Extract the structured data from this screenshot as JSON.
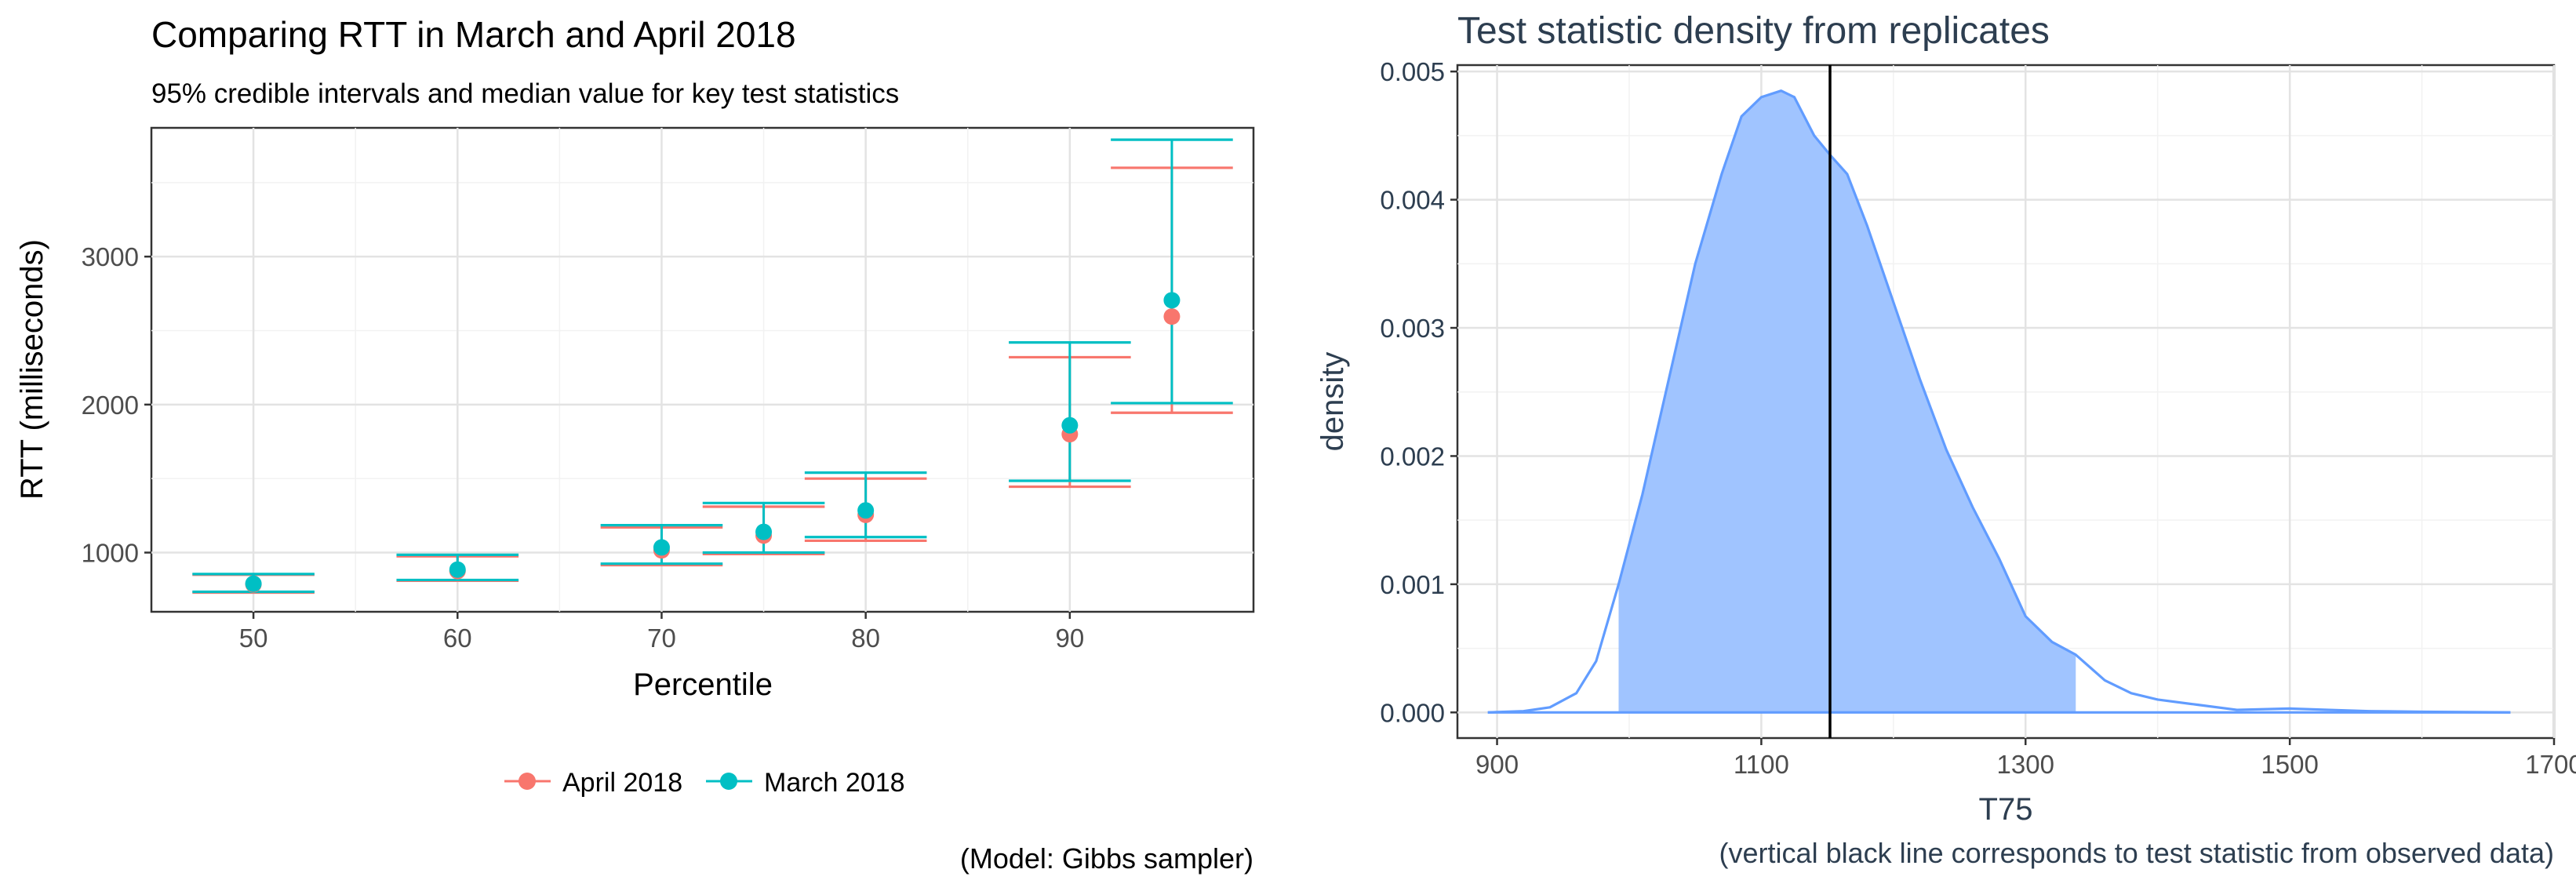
{
  "chart_data": [
    {
      "type": "errorbar",
      "title": "Comparing RTT in March and April 2018",
      "subtitle": "95% credible intervals and median value for key test statistics",
      "caption": "(Model: Gibbs sampler)",
      "xlabel": "Percentile",
      "ylabel": "RTT (milliseconds)",
      "xlim": [
        45,
        99
      ],
      "ylim": [
        600,
        3870
      ],
      "x_ticks": [
        50,
        60,
        70,
        80,
        90
      ],
      "y_ticks": [
        1000,
        2000,
        3000
      ],
      "grid": true,
      "legend_position": "bottom",
      "series": [
        {
          "name": "April 2018",
          "color": "#F8766D",
          "points": [
            {
              "x": 50,
              "median": 785,
              "low": 730,
              "high": 850
            },
            {
              "x": 60,
              "median": 875,
              "low": 810,
              "high": 975
            },
            {
              "x": 70,
              "median": 1015,
              "low": 915,
              "high": 1170
            },
            {
              "x": 75,
              "median": 1115,
              "low": 990,
              "high": 1310
            },
            {
              "x": 80,
              "median": 1255,
              "low": 1080,
              "high": 1500
            },
            {
              "x": 90,
              "median": 1800,
              "low": 1445,
              "high": 2320
            },
            {
              "x": 95,
              "median": 2595,
              "low": 1945,
              "high": 3600
            }
          ]
        },
        {
          "name": "March 2018",
          "color": "#00BFC4",
          "points": [
            {
              "x": 50,
              "median": 790,
              "low": 735,
              "high": 855
            },
            {
              "x": 60,
              "median": 885,
              "low": 815,
              "high": 985
            },
            {
              "x": 70,
              "median": 1035,
              "low": 925,
              "high": 1185
            },
            {
              "x": 75,
              "median": 1140,
              "low": 1000,
              "high": 1335
            },
            {
              "x": 80,
              "median": 1285,
              "low": 1105,
              "high": 1540
            },
            {
              "x": 90,
              "median": 1860,
              "low": 1485,
              "high": 2420
            },
            {
              "x": 95,
              "median": 2705,
              "low": 2010,
              "high": 3790
            }
          ]
        }
      ]
    },
    {
      "type": "area",
      "title": "Test statistic density from replicates",
      "xlabel": "T75",
      "ylabel": "density",
      "caption": "(vertical black line corresponds to test statistic from observed data)",
      "xlim": [
        870,
        1700
      ],
      "ylim": [
        -0.0002,
        0.00505
      ],
      "x_ticks": [
        900,
        1100,
        1300,
        1500,
        1700
      ],
      "y_ticks": [
        0.0,
        0.001,
        0.002,
        0.003,
        0.004,
        0.005
      ],
      "y_tick_labels": [
        "0.000",
        "0.001",
        "0.002",
        "0.003",
        "0.004",
        "0.005"
      ],
      "grid": true,
      "observed_value": 1152,
      "shaded_interval": [
        992,
        1338
      ],
      "line_color": "#619CFF",
      "fill_color": "#A0C4FF",
      "density": [
        {
          "x": 893,
          "y": 0.0
        },
        {
          "x": 920,
          "y": 1e-05
        },
        {
          "x": 940,
          "y": 4e-05
        },
        {
          "x": 960,
          "y": 0.00015
        },
        {
          "x": 975,
          "y": 0.0004
        },
        {
          "x": 992,
          "y": 0.001
        },
        {
          "x": 1010,
          "y": 0.0017
        },
        {
          "x": 1030,
          "y": 0.0026
        },
        {
          "x": 1050,
          "y": 0.0035
        },
        {
          "x": 1070,
          "y": 0.0042
        },
        {
          "x": 1085,
          "y": 0.00465
        },
        {
          "x": 1100,
          "y": 0.0048
        },
        {
          "x": 1115,
          "y": 0.00485
        },
        {
          "x": 1125,
          "y": 0.0048
        },
        {
          "x": 1140,
          "y": 0.0045
        },
        {
          "x": 1152,
          "y": 0.00435
        },
        {
          "x": 1165,
          "y": 0.0042
        },
        {
          "x": 1180,
          "y": 0.0038
        },
        {
          "x": 1200,
          "y": 0.0032
        },
        {
          "x": 1220,
          "y": 0.0026
        },
        {
          "x": 1240,
          "y": 0.00205
        },
        {
          "x": 1260,
          "y": 0.0016
        },
        {
          "x": 1280,
          "y": 0.0012
        },
        {
          "x": 1300,
          "y": 0.00075
        },
        {
          "x": 1320,
          "y": 0.00055
        },
        {
          "x": 1338,
          "y": 0.00045
        },
        {
          "x": 1360,
          "y": 0.00025
        },
        {
          "x": 1380,
          "y": 0.00015
        },
        {
          "x": 1400,
          "y": 0.0001
        },
        {
          "x": 1430,
          "y": 6e-05
        },
        {
          "x": 1460,
          "y": 2e-05
        },
        {
          "x": 1500,
          "y": 3e-05
        },
        {
          "x": 1530,
          "y": 2e-05
        },
        {
          "x": 1560,
          "y": 1e-05
        },
        {
          "x": 1600,
          "y": 5e-06
        },
        {
          "x": 1667,
          "y": 0.0
        }
      ]
    }
  ]
}
